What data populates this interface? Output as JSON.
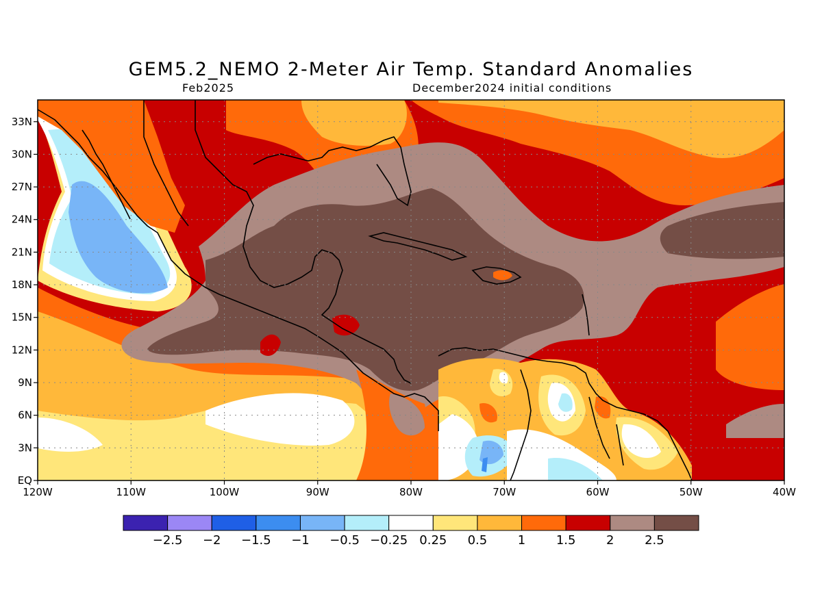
{
  "title": "GEM5.2_NEMO 2-Meter Air Temp. Standard Anomalies",
  "subtitle_left": "Feb2025",
  "subtitle_right": "December2024 initial conditions",
  "map": {
    "lon_range": [
      -120,
      -40
    ],
    "lat_range": [
      0,
      35
    ],
    "x_ticks": [
      {
        "lon": -120,
        "label": "120W"
      },
      {
        "lon": -110,
        "label": "110W"
      },
      {
        "lon": -100,
        "label": "100W"
      },
      {
        "lon": -90,
        "label": "90W"
      },
      {
        "lon": -80,
        "label": "80W"
      },
      {
        "lon": -70,
        "label": "70W"
      },
      {
        "lon": -60,
        "label": "60W"
      },
      {
        "lon": -50,
        "label": "50W"
      },
      {
        "lon": -40,
        "label": "40W"
      }
    ],
    "y_ticks": [
      {
        "lat": 0,
        "label": "EQ"
      },
      {
        "lat": 3,
        "label": "3N"
      },
      {
        "lat": 6,
        "label": "6N"
      },
      {
        "lat": 9,
        "label": "9N"
      },
      {
        "lat": 12,
        "label": "12N"
      },
      {
        "lat": 15,
        "label": "15N"
      },
      {
        "lat": 18,
        "label": "18N"
      },
      {
        "lat": 21,
        "label": "21N"
      },
      {
        "lat": 24,
        "label": "24N"
      },
      {
        "lat": 27,
        "label": "27N"
      },
      {
        "lat": 30,
        "label": "30N"
      },
      {
        "lat": 33,
        "label": "33N"
      }
    ],
    "grid": true
  },
  "colorbar": {
    "colors": [
      "#3b22b0",
      "#9b87f5",
      "#1f5fe6",
      "#3c8df0",
      "#78b5f7",
      "#b4eefa",
      "#ffffff",
      "#ffe67a",
      "#ffb83a",
      "#ff6a0a",
      "#c80000",
      "#ad8a82",
      "#744e46"
    ],
    "labels": [
      "-2.5",
      "-2",
      "-1.5",
      "-1",
      "-0.5",
      "-0.25",
      "0.25",
      "0.5",
      "1",
      "1.5",
      "2",
      "2.5"
    ]
  }
}
